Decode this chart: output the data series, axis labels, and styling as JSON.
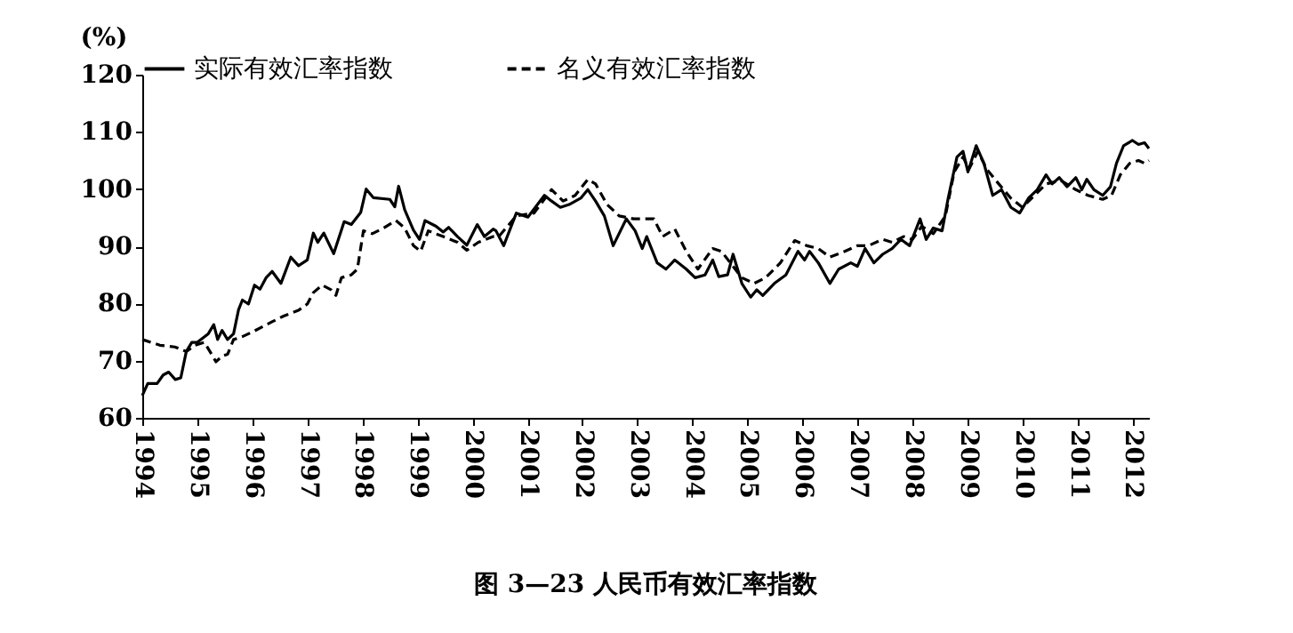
{
  "chart_data": {
    "type": "line",
    "title": "图 3—23 人民币有效汇率指数",
    "ylabel": "(%)",
    "xlim": [
      1994,
      2012.3
    ],
    "xticks": [
      1994,
      1995,
      1996,
      1997,
      1998,
      1999,
      2000,
      2001,
      2002,
      2003,
      2004,
      2005,
      2006,
      2007,
      2008,
      2009,
      2010,
      2011,
      2012
    ],
    "ylim": [
      60,
      120
    ],
    "yticks": [
      60,
      70,
      80,
      90,
      100,
      110,
      120
    ],
    "legend": "top",
    "series": [
      {
        "name": "实际有效汇率指数",
        "color": "#000000",
        "line_style": "solid",
        "x": [
          1994.0,
          1994.1,
          1994.27,
          1994.38,
          1994.48,
          1994.6,
          1994.7,
          1994.8,
          1994.9,
          1995.0,
          1995.2,
          1995.3,
          1995.37,
          1995.45,
          1995.55,
          1995.66,
          1995.75,
          1995.82,
          1995.93,
          1996.04,
          1996.14,
          1996.25,
          1996.36,
          1996.52,
          1996.7,
          1996.84,
          1997.0,
          1997.11,
          1997.19,
          1997.3,
          1997.48,
          1997.67,
          1997.8,
          1997.97,
          1998.07,
          1998.2,
          1998.5,
          1998.59,
          1998.66,
          1998.77,
          1998.93,
          1999.04,
          1999.14,
          1999.34,
          1999.47,
          1999.57,
          1999.73,
          1999.9,
          2000.09,
          2000.22,
          2000.38,
          2000.43,
          2000.57,
          2000.8,
          2001.01,
          2001.31,
          2001.44,
          2001.6,
          2001.76,
          2001.97,
          2002.1,
          2002.24,
          2002.4,
          2002.56,
          2002.8,
          2002.96,
          2003.09,
          2003.17,
          2003.36,
          2003.52,
          2003.68,
          2003.89,
          2004.05,
          2004.23,
          2004.37,
          2004.48,
          2004.64,
          2004.74,
          2004.9,
          2005.06,
          2005.17,
          2005.28,
          2005.49,
          2005.7,
          2005.92,
          2006.04,
          2006.13,
          2006.29,
          2006.5,
          2006.66,
          2006.88,
          2007.0,
          2007.14,
          2007.3,
          2007.46,
          2007.63,
          2007.79,
          2007.95,
          2008.14,
          2008.25,
          2008.38,
          2008.54,
          2008.65,
          2008.81,
          2008.92,
          2009.01,
          2009.16,
          2009.3,
          2009.46,
          2009.62,
          2009.79,
          2009.95,
          2010.11,
          2010.27,
          2010.43,
          2010.54,
          2010.67,
          2010.81,
          2010.97,
          2011.08,
          2011.17,
          2011.3,
          2011.46,
          2011.6,
          2011.71,
          2011.84,
          2012.0,
          2012.11,
          2012.22,
          2012.3
        ],
        "values": [
          63.9,
          66,
          66,
          67.5,
          68,
          66.7,
          67,
          71.6,
          73.2,
          73.2,
          74.7,
          76.3,
          73.7,
          75.3,
          73.7,
          74.7,
          78.9,
          80.6,
          79.9,
          83.2,
          82.5,
          84.5,
          85.6,
          83.5,
          88.1,
          86.6,
          87.6,
          92.3,
          90.7,
          92.3,
          88.7,
          94.3,
          93.8,
          95.9,
          100,
          98.5,
          98.2,
          96.9,
          100.5,
          96.4,
          92.8,
          91.2,
          94.5,
          93.5,
          92.5,
          93.3,
          91.7,
          90.2,
          93.8,
          91.7,
          93,
          92.7,
          90.1,
          95.8,
          95.1,
          98.9,
          97.9,
          96.8,
          97.3,
          98.4,
          99.9,
          97.9,
          95.3,
          90.1,
          94.8,
          92.7,
          89.6,
          91.7,
          87.1,
          86,
          87.6,
          86,
          84.5,
          85,
          87.6,
          84.7,
          85,
          88.6,
          83.5,
          81.1,
          82.4,
          81.4,
          83.5,
          85,
          89.1,
          87.6,
          89.1,
          87.1,
          83.5,
          86,
          87.1,
          86.5,
          89.6,
          87.1,
          88.6,
          89.6,
          91.2,
          90.1,
          94.8,
          91.2,
          93.2,
          92.7,
          98.4,
          105.6,
          106.6,
          103,
          107.6,
          104.5,
          98.9,
          99.9,
          96.8,
          95.8,
          98.4,
          99.9,
          102.5,
          100.9,
          102,
          100.4,
          102,
          99.9,
          101.7,
          99.9,
          98.9,
          100.4,
          104.5,
          107.6,
          108.5,
          107.8,
          108.1,
          107.1
        ]
      },
      {
        "name": "名义有效汇率指数",
        "color": "#000000",
        "line_style": "dashed",
        "x": [
          1994.0,
          1994.32,
          1994.59,
          1994.8,
          1994.96,
          1995.13,
          1995.23,
          1995.34,
          1995.45,
          1995.55,
          1995.66,
          1995.82,
          1996.04,
          1996.36,
          1996.57,
          1996.84,
          1997.0,
          1997.11,
          1997.27,
          1997.43,
          1997.52,
          1997.62,
          1997.8,
          1997.91,
          1998.02,
          1998.18,
          1998.39,
          1998.61,
          1998.77,
          1998.93,
          1999.06,
          1999.2,
          1999.47,
          1999.73,
          1999.9,
          2000.11,
          2000.38,
          2000.48,
          2000.8,
          2001.12,
          2001.44,
          2001.65,
          2001.87,
          2002.1,
          2002.24,
          2002.45,
          2002.67,
          2002.93,
          2003.3,
          2003.46,
          2003.68,
          2003.89,
          2004.1,
          2004.37,
          2004.53,
          2004.69,
          2004.9,
          2005.12,
          2005.33,
          2005.6,
          2005.86,
          2006.08,
          2006.29,
          2006.5,
          2006.77,
          2007.0,
          2007.2,
          2007.46,
          2007.63,
          2007.84,
          2008.0,
          2008.17,
          2008.38,
          2008.6,
          2008.76,
          2008.92,
          2009.03,
          2009.19,
          2009.35,
          2009.57,
          2009.79,
          2010.0,
          2010.22,
          2010.43,
          2010.7,
          2010.97,
          2011.19,
          2011.46,
          2011.62,
          2011.78,
          2011.95,
          2012.11,
          2012.22,
          2012.3
        ],
        "values": [
          73.7,
          72.7,
          72.4,
          71.6,
          72.7,
          73.2,
          71.6,
          69.8,
          70.8,
          71.1,
          73.7,
          74.2,
          75.2,
          76.8,
          77.8,
          78.8,
          79.9,
          81.9,
          83.2,
          82.4,
          81.4,
          84.5,
          85,
          86,
          92.7,
          92.2,
          93.2,
          94.5,
          93.2,
          90.1,
          89.1,
          92.7,
          91.7,
          90.7,
          89.3,
          90.7,
          91.7,
          91.7,
          95.3,
          95.8,
          99.9,
          97.9,
          98.9,
          101.7,
          100.9,
          97.3,
          95.3,
          94.8,
          94.8,
          91.7,
          93,
          89.1,
          86,
          89.6,
          89.1,
          87.1,
          84.5,
          83.5,
          84.5,
          87.1,
          91,
          90.1,
          89.6,
          88.1,
          89.1,
          90.1,
          90.1,
          91.2,
          90.7,
          91.7,
          91.2,
          93.5,
          92.2,
          95.3,
          103,
          105.6,
          103.5,
          106.6,
          103.5,
          100.9,
          98.4,
          96.8,
          98.9,
          100.9,
          101.5,
          99.9,
          98.9,
          98.2,
          98.9,
          102.5,
          104.5,
          105,
          104.5,
          105
        ]
      }
    ]
  }
}
